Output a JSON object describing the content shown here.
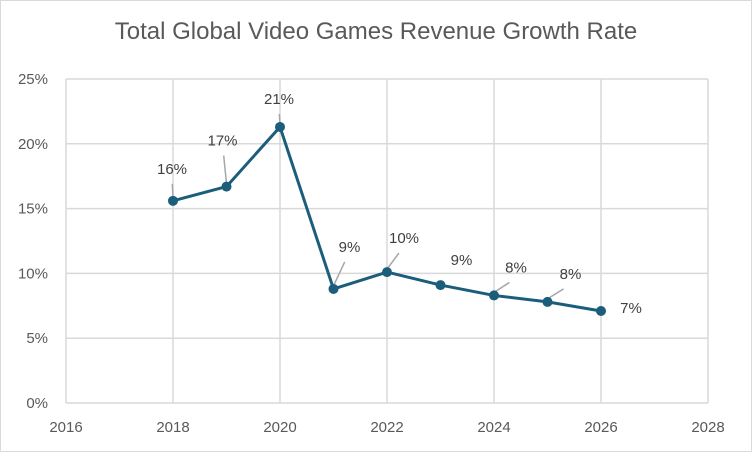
{
  "chart_data": {
    "type": "line",
    "title": "Total Global Video Games Revenue Growth Rate",
    "xlabel": "",
    "ylabel": "",
    "x": [
      2018,
      2019,
      2020,
      2021,
      2022,
      2023,
      2024,
      2025,
      2026
    ],
    "values": [
      15.6,
      16.7,
      21.3,
      8.8,
      10.1,
      9.1,
      8.3,
      7.8,
      7.1
    ],
    "data_labels": [
      "16%",
      "17%",
      "21%",
      "9%",
      "10%",
      "9%",
      "8%",
      "8%",
      "7%"
    ],
    "xlim": [
      2016,
      2028
    ],
    "ylim": [
      0,
      25
    ],
    "x_ticks": [
      "2016",
      "2018",
      "2020",
      "2022",
      "2024",
      "2026",
      "2028"
    ],
    "y_ticks": [
      "0%",
      "5%",
      "10%",
      "15%",
      "20%",
      "25%"
    ],
    "grid": true,
    "legend": "none",
    "colors": {
      "line": "#1b5e7b",
      "grid": "#d9d9d9",
      "leader": "#a6a6a6"
    }
  }
}
